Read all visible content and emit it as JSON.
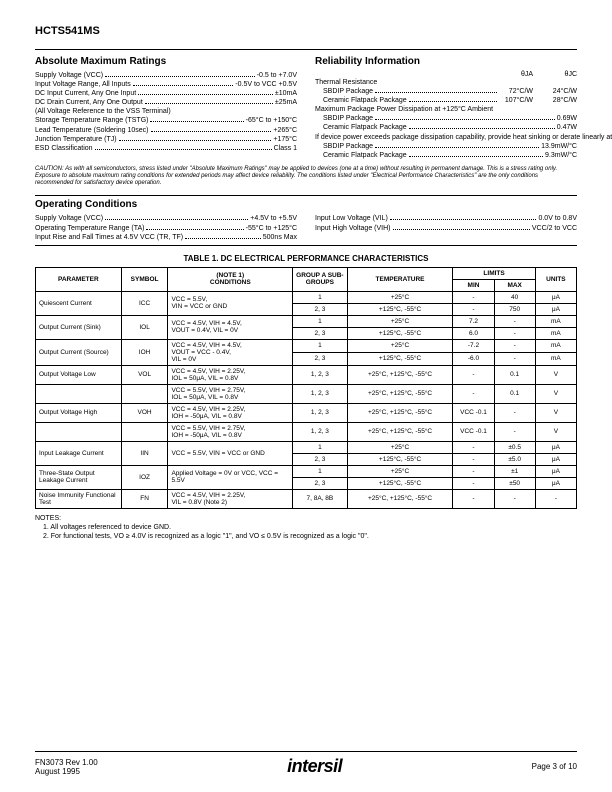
{
  "part_number": "HCTS541MS",
  "abs_max": {
    "title": "Absolute Maximum Ratings",
    "lines": [
      {
        "label": "Supply Voltage (VCC)",
        "value": "-0.5 to +7.0V"
      },
      {
        "label": "Input Voltage Range, All Inputs",
        "value": "-0.5V to VCC +0.5V"
      },
      {
        "label": "DC Input Current, Any One Input",
        "value": "±10mA"
      },
      {
        "label": "DC Drain Current, Any One Output",
        "value": "±25mA"
      },
      {
        "label": "(All Voltage Reference to the VSS Terminal)",
        "value": "",
        "nodots": true
      },
      {
        "label": "Storage Temperature Range (TSTG)",
        "value": "-65°C to +150°C"
      },
      {
        "label": "Lead Temperature (Soldering 10sec)",
        "value": "+265°C"
      },
      {
        "label": "Junction Temperature (TJ)",
        "value": "+175°C"
      },
      {
        "label": "ESD Classification",
        "value": "Class 1"
      }
    ]
  },
  "reliability": {
    "title": "Reliability Information",
    "header": {
      "c1": "θJA",
      "c2": "θJC"
    },
    "lines": [
      {
        "label": "Thermal Resistance",
        "c1": "",
        "c2": "",
        "is_header_row": true
      },
      {
        "label": "SBDIP Package",
        "c1": "72°C/W",
        "c2": "24°C/W",
        "indent": true
      },
      {
        "label": "Ceramic Flatpack Package",
        "c1": "107°C/W",
        "c2": "28°C/W",
        "indent": true
      }
    ],
    "single_lines": [
      {
        "label": "Maximum Package Power Dissipation at +125°C Ambient",
        "value": "",
        "nodots": true
      },
      {
        "label": "SBDIP Package",
        "value": "0.69W",
        "indent": true
      },
      {
        "label": "Ceramic Flatpack Package",
        "value": "0.47W",
        "indent": true
      },
      {
        "label": "If device power exceeds package dissipation capability, provide heat sinking or derate linearly at the following rate:",
        "value": "",
        "nodots": true,
        "wrap": true
      },
      {
        "label": "SBDIP Package",
        "value": "13.9mW/°C",
        "indent": true
      },
      {
        "label": "Ceramic Flatpack Package",
        "value": "9.3mW/°C",
        "indent": true
      }
    ]
  },
  "caution": "CAUTION: As with all semiconductors, stress listed under \"Absolute Maximum Ratings\" may be applied to devices (one at a time) without resulting in permanent damage. This is a stress rating only. Exposure to absolute maximum rating conditions for extended periods may affect device reliability. The conditions listed under \"Electrical Performance Characteristics\" are the only conditions recommended for satisfactory device operation.",
  "op_cond": {
    "title": "Operating Conditions",
    "left": [
      {
        "label": "Supply Voltage (VCC)",
        "value": "+4.5V to +5.5V"
      },
      {
        "label": "Operating Temperature Range (TA)",
        "value": "-55°C to +125°C"
      },
      {
        "label": "Input Rise and Fall Times at 4.5V VCC (TR, TF)",
        "value": "500ns Max"
      }
    ],
    "right": [
      {
        "label": "Input Low Voltage (VIL)",
        "value": "0.0V to 0.8V"
      },
      {
        "label": "Input High Voltage (VIH)",
        "value": "VCC/2 to VCC"
      }
    ]
  },
  "table": {
    "title": "TABLE 1.  DC ELECTRICAL PERFORMANCE CHARACTERISTICS",
    "headers": {
      "parameter": "PARAMETER",
      "symbol": "SYMBOL",
      "conditions_note": "(NOTE 1)",
      "conditions": "CONDITIONS",
      "groups": "GROUP A SUB-GROUPS",
      "temperature": "TEMPERATURE",
      "limits": "LIMITS",
      "min": "MIN",
      "max": "MAX",
      "units": "UNITS"
    },
    "rows": [
      {
        "param": "Quiescent Current",
        "sym": "ICC",
        "cond": "VCC = 5.5V,\nVIN = VCC or GND",
        "rs": 2,
        "sub": [
          {
            "g": "1",
            "t": "+25°C",
            "min": "-",
            "max": "40",
            "u": "μA"
          },
          {
            "g": "2, 3",
            "t": "+125°C, -55°C",
            "min": "-",
            "max": "750",
            "u": "μA"
          }
        ]
      },
      {
        "param": "Output Current (Sink)",
        "sym": "IOL",
        "cond": "VCC = 4.5V, VIH = 4.5V,\nVOUT = 0.4V, VIL = 0V",
        "rs": 2,
        "sub": [
          {
            "g": "1",
            "t": "+25°C",
            "min": "7.2",
            "max": "-",
            "u": "mA"
          },
          {
            "g": "2, 3",
            "t": "+125°C, -55°C",
            "min": "6.0",
            "max": "-",
            "u": "mA"
          }
        ]
      },
      {
        "param": "Output Current (Source)",
        "sym": "IOH",
        "cond": "VCC = 4.5V, VIH = 4.5V,\nVOUT = VCC - 0.4V,\nVIL = 0V",
        "rs": 2,
        "sub": [
          {
            "g": "1",
            "t": "+25°C",
            "min": "-7.2",
            "max": "-",
            "u": "mA"
          },
          {
            "g": "2, 3",
            "t": "+125°C, -55°C",
            "min": "-6.0",
            "max": "-",
            "u": "mA"
          }
        ]
      },
      {
        "param": "Output Voltage Low",
        "sym": "VOL",
        "cond": "VCC = 4.5V, VIH = 2.25V,\nIOL = 50μA, VIL = 0.8V",
        "rs": 1,
        "sub": [
          {
            "g": "1, 2, 3",
            "t": "+25°C, +125°C, -55°C",
            "min": "-",
            "max": "0.1",
            "u": "V"
          }
        ]
      },
      {
        "param": "",
        "sym": "",
        "cond": "VCC = 5.5V, VIH = 2.75V,\nIOL = 50μA, VIL = 0.8V",
        "rs": 1,
        "cont": true,
        "sub": [
          {
            "g": "1, 2, 3",
            "t": "+25°C, +125°C, -55°C",
            "min": "-",
            "max": "0.1",
            "u": "V"
          }
        ]
      },
      {
        "param": "Output Voltage High",
        "sym": "VOH",
        "cond": "VCC = 4.5V, VIH = 2.25V,\nIOH = -50μA, VIL = 0.8V",
        "rs": 1,
        "sub": [
          {
            "g": "1, 2, 3",
            "t": "+25°C, +125°C, -55°C",
            "min": "VCC -0.1",
            "max": "-",
            "u": "V"
          }
        ]
      },
      {
        "param": "",
        "sym": "",
        "cond": "VCC = 5.5V, VIH = 2.75V,\nIOH = -50μA, VIL = 0.8V",
        "rs": 1,
        "cont": true,
        "sub": [
          {
            "g": "1, 2, 3",
            "t": "+25°C, +125°C, -55°C",
            "min": "VCC -0.1",
            "max": "-",
            "u": "V"
          }
        ]
      },
      {
        "param": "Input Leakage Current",
        "sym": "IIN",
        "cond": "VCC = 5.5V, VIN = VCC or GND",
        "rs": 2,
        "sub": [
          {
            "g": "1",
            "t": "+25°C",
            "min": "-",
            "max": "±0.5",
            "u": "μA"
          },
          {
            "g": "2, 3",
            "t": "+125°C, -55°C",
            "min": "-",
            "max": "±5.0",
            "u": "μA"
          }
        ]
      },
      {
        "param": "Three-State Output Leakage Current",
        "sym": "IOZ",
        "cond": "Applied Voltage = 0V or VCC, VCC = 5.5V",
        "rs": 2,
        "sub": [
          {
            "g": "1",
            "t": "+25°C",
            "min": "-",
            "max": "±1",
            "u": "μA"
          },
          {
            "g": "2, 3",
            "t": "+125°C, -55°C",
            "min": "-",
            "max": "±50",
            "u": "μA"
          }
        ]
      },
      {
        "param": "Noise Immunity Functional Test",
        "sym": "FN",
        "cond": "VCC = 4.5V, VIH = 2.25V,\nVIL = 0.8V (Note 2)",
        "rs": 1,
        "sub": [
          {
            "g": "7, 8A, 8B",
            "t": "+25°C, +125°C, -55°C",
            "min": "-",
            "max": "-",
            "u": "-"
          }
        ]
      }
    ]
  },
  "notes": {
    "title": "NOTES:",
    "items": [
      "1.  All voltages referenced to device GND.",
      "2.  For functional tests, VO ≥ 4.0V is recognized as a logic \"1\", and VO ≤ 0.5V is recognized as a logic \"0\"."
    ]
  },
  "footer": {
    "doc": "FN3073  Rev 1.00",
    "date": "August 1995",
    "page": "Page 3 of 10",
    "logo": "intersil"
  }
}
